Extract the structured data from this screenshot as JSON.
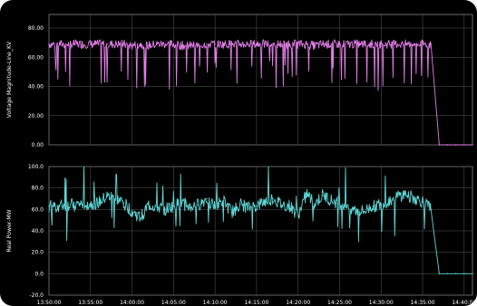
{
  "chart_data": [
    {
      "type": "line",
      "ylabel": "Voltage Magnitude-Line_KV",
      "ylim": [
        0,
        90
      ],
      "yticks": [
        "80.00",
        "60.00",
        "40.00",
        "20.00",
        "0.00"
      ],
      "ytick_values": [
        80,
        60,
        40,
        20,
        0
      ],
      "grid": true,
      "color": "#e27ee8",
      "series": [
        {
          "x": [
            "13:50:00",
            "13:51:00",
            "13:52:00",
            "13:53:00",
            "13:54:00",
            "13:55:00",
            "13:56:00",
            "13:57:00",
            "13:58:00",
            "13:59:00",
            "14:00:00",
            "14:01:00",
            "14:02:00",
            "14:03:00",
            "14:04:00",
            "14:05:00",
            "14:06:00",
            "14:07:00",
            "14:08:00",
            "14:09:00",
            "14:10:00",
            "14:11:00",
            "14:12:00",
            "14:13:00",
            "14:14:00",
            "14:15:00",
            "14:16:00",
            "14:17:00",
            "14:18:00",
            "14:19:00",
            "14:20:00",
            "14:21:00",
            "14:22:00",
            "14:23:00",
            "14:24:00",
            "14:25:00",
            "14:26:00",
            "14:27:00",
            "14:28:00",
            "14:29:00",
            "14:30:00",
            "14:31:00",
            "14:32:00",
            "14:33:00",
            "14:34:00",
            "14:35:00",
            "14:36:00",
            "14:37:00",
            "14:38:00",
            "14:39:00",
            "14:40:00",
            "14:41:00"
          ],
          "y": [
            69,
            69,
            69,
            69,
            69,
            69,
            69,
            69,
            69,
            69,
            68,
            69,
            68,
            69,
            69,
            69,
            68,
            68,
            68,
            69,
            69,
            69,
            69,
            69,
            69,
            69,
            69,
            69,
            69,
            69,
            69,
            69,
            68,
            69,
            69,
            69,
            69,
            69,
            69,
            69,
            69,
            69,
            69,
            69,
            69,
            69,
            69,
            0,
            0,
            0,
            0,
            0
          ]
        }
      ]
    },
    {
      "type": "line",
      "ylabel": "Real Power-MW",
      "ylim": [
        -20,
        100
      ],
      "yticks": [
        "100.0",
        "80.0",
        "60.0",
        "40.0",
        "20.0",
        "0.0",
        "-20.0"
      ],
      "ytick_values": [
        100,
        80,
        60,
        40,
        20,
        0,
        -20
      ],
      "grid": true,
      "color": "#5ed8d6",
      "xlabels": [
        "13:50:00",
        "13:55:00",
        "14:00:00",
        "14:05:00",
        "14:10:00",
        "14:15:00",
        "14:20:00",
        "14:25:00",
        "14:30:00",
        "14:35:00",
        "14:40:00"
      ],
      "series": [
        {
          "x": [
            "13:50:00",
            "13:51:00",
            "13:52:00",
            "13:53:00",
            "13:54:00",
            "13:55:00",
            "13:56:00",
            "13:57:00",
            "13:58:00",
            "13:59:00",
            "14:00:00",
            "14:01:00",
            "14:02:00",
            "14:03:00",
            "14:04:00",
            "14:05:00",
            "14:06:00",
            "14:07:00",
            "14:08:00",
            "14:09:00",
            "14:10:00",
            "14:11:00",
            "14:12:00",
            "14:13:00",
            "14:14:00",
            "14:15:00",
            "14:16:00",
            "14:17:00",
            "14:18:00",
            "14:19:00",
            "14:20:00",
            "14:21:00",
            "14:22:00",
            "14:23:00",
            "14:24:00",
            "14:25:00",
            "14:26:00",
            "14:27:00",
            "14:28:00",
            "14:29:00",
            "14:30:00",
            "14:31:00",
            "14:32:00",
            "14:33:00",
            "14:34:00",
            "14:35:00",
            "14:36:00",
            "14:37:00",
            "14:38:00",
            "14:39:00",
            "14:40:00",
            "14:41:00"
          ],
          "y": [
            63,
            63,
            64,
            64,
            65,
            65,
            66,
            72,
            70,
            66,
            58,
            52,
            64,
            62,
            60,
            63,
            66,
            62,
            64,
            70,
            62,
            68,
            57,
            65,
            61,
            63,
            67,
            70,
            64,
            63,
            54,
            75,
            65,
            73,
            68,
            65,
            64,
            58,
            58,
            63,
            64,
            68,
            72,
            74,
            70,
            67,
            60,
            0,
            0,
            0,
            0,
            0
          ]
        }
      ]
    }
  ]
}
